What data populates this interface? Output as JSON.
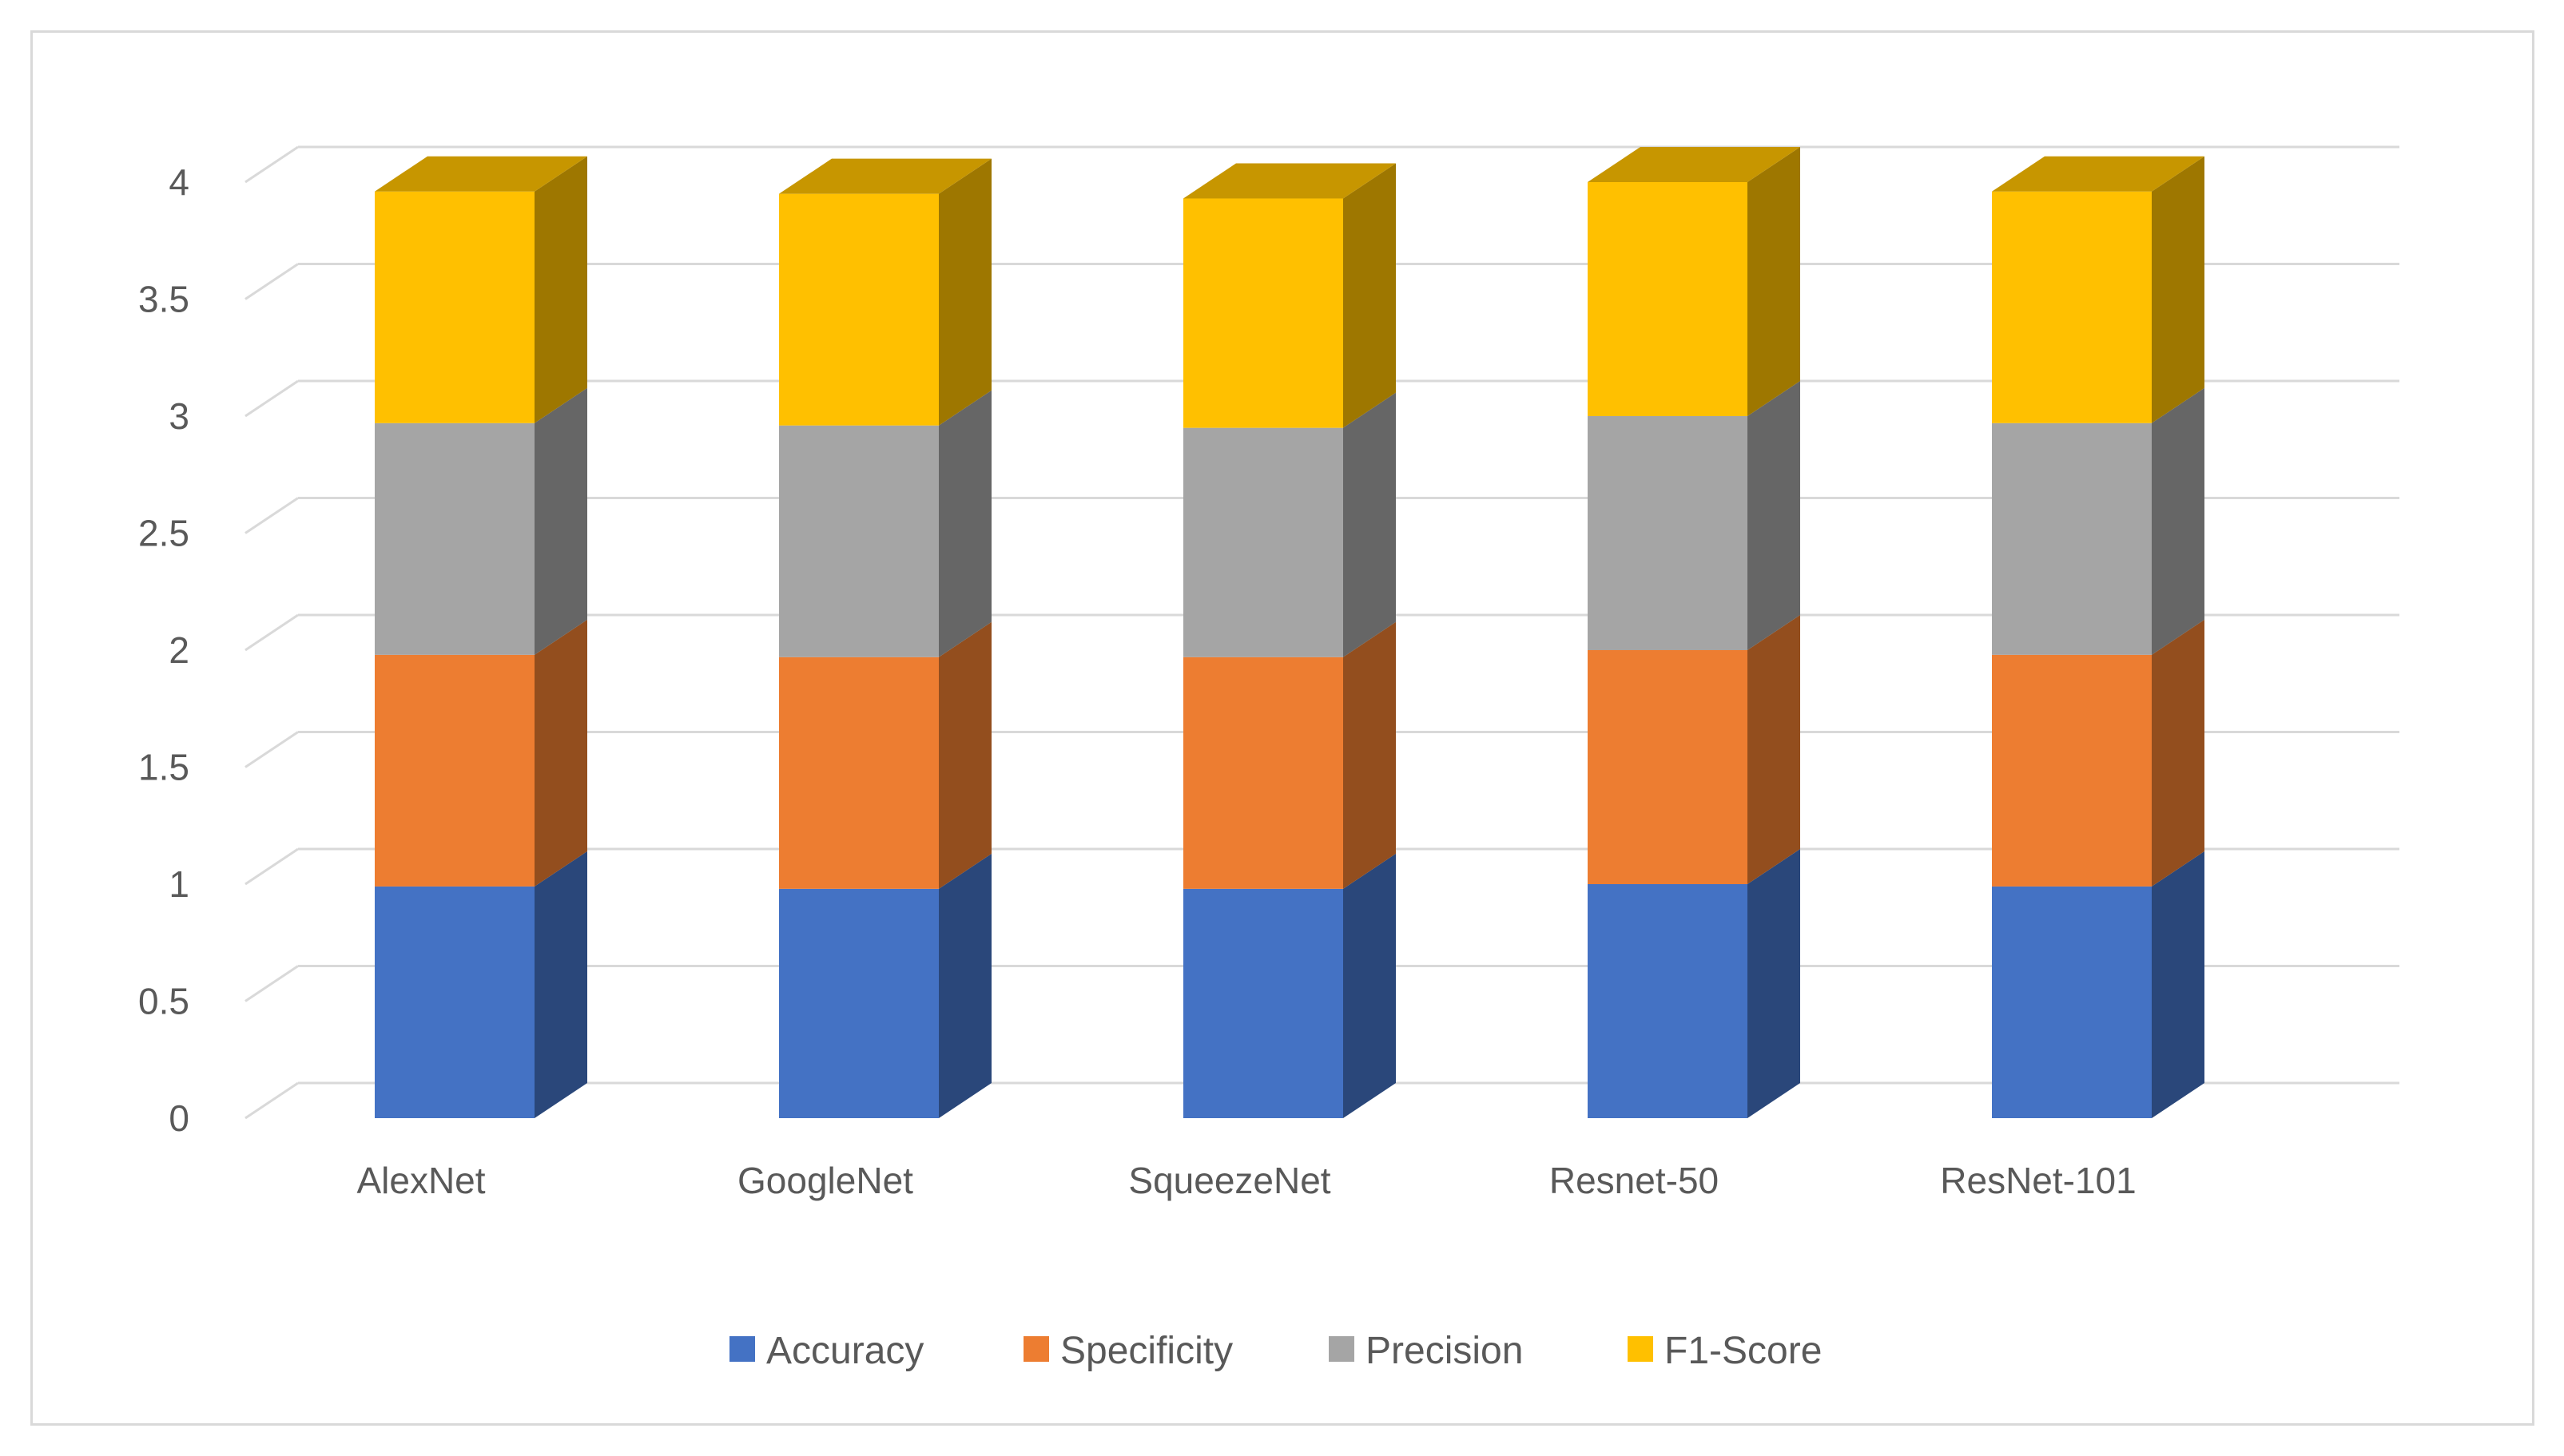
{
  "chart_data": {
    "type": "bar",
    "stacked": true,
    "style": "3d-stacked-column",
    "title": "",
    "xlabel": "",
    "ylabel": "",
    "ylim": [
      0,
      4
    ],
    "ytick_step": 0.5,
    "ytick_labels": [
      "0",
      "0.5",
      "1",
      "1.5",
      "2",
      "2.5",
      "3",
      "3.5",
      "4"
    ],
    "grid": true,
    "legend_position": "bottom",
    "categories": [
      "AlexNet",
      "GoogleNet",
      "SqueezeNet",
      "Resnet-50",
      "ResNet-101"
    ],
    "series": [
      {
        "name": "Accuracy",
        "color": "#4472C4",
        "values": [
          0.99,
          0.98,
          0.98,
          1.0,
          0.99
        ]
      },
      {
        "name": "Specificity",
        "color": "#ED7D31",
        "values": [
          0.99,
          0.99,
          0.99,
          1.0,
          0.99
        ]
      },
      {
        "name": "Precision",
        "color": "#A5A5A5",
        "values": [
          0.99,
          0.99,
          0.98,
          1.0,
          0.99
        ]
      },
      {
        "name": "F1-Score",
        "color": "#FFC000",
        "values": [
          0.99,
          0.99,
          0.98,
          1.0,
          0.99
        ]
      }
    ]
  }
}
